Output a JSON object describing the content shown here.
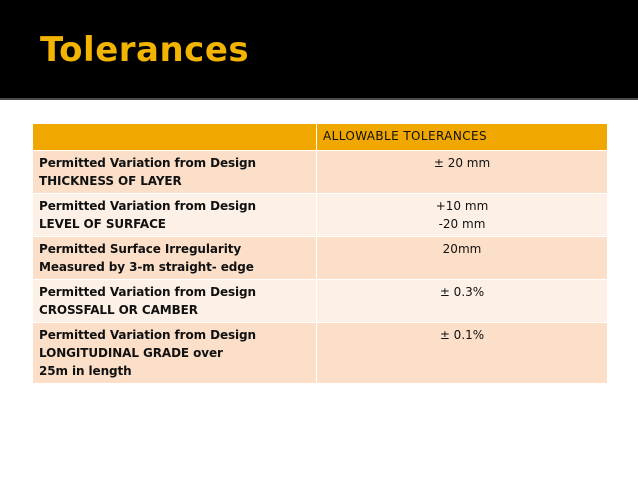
{
  "slide": {
    "title": "Tolerances"
  },
  "table": {
    "header": [
      "",
      "ALLOWABLE  TOLERANCES"
    ],
    "rows": [
      {
        "label_lines": [
          "Permitted Variation from Design",
          "THICKNESS OF LAYER"
        ],
        "value_lines": [
          "± 20 mm"
        ]
      },
      {
        "label_lines": [
          "Permitted Variation from Design",
          "LEVEL OF SURFACE"
        ],
        "value_lines": [
          "+10 mm",
          "-20 mm"
        ]
      },
      {
        "label_lines": [
          "Permitted Surface Irregularity",
          "Measured by 3-m straight- edge"
        ],
        "value_lines": [
          "20mm"
        ]
      },
      {
        "label_lines": [
          "Permitted Variation from Design",
          "CROSSFALL OR CAMBER"
        ],
        "value_lines": [
          "±  0.3%"
        ]
      },
      {
        "label_lines": [
          "Permitted Variation from Design",
          "LONGITUDINAL GRADE over",
          "25m in length"
        ],
        "value_lines": [
          "±  0.1%"
        ]
      }
    ]
  },
  "colors": {
    "title_bar": "#000000",
    "title_text": "#f2b400",
    "header_fill": "#f0a800",
    "row_odd": "#fbdfc8",
    "row_even": "#fdf0e6"
  }
}
